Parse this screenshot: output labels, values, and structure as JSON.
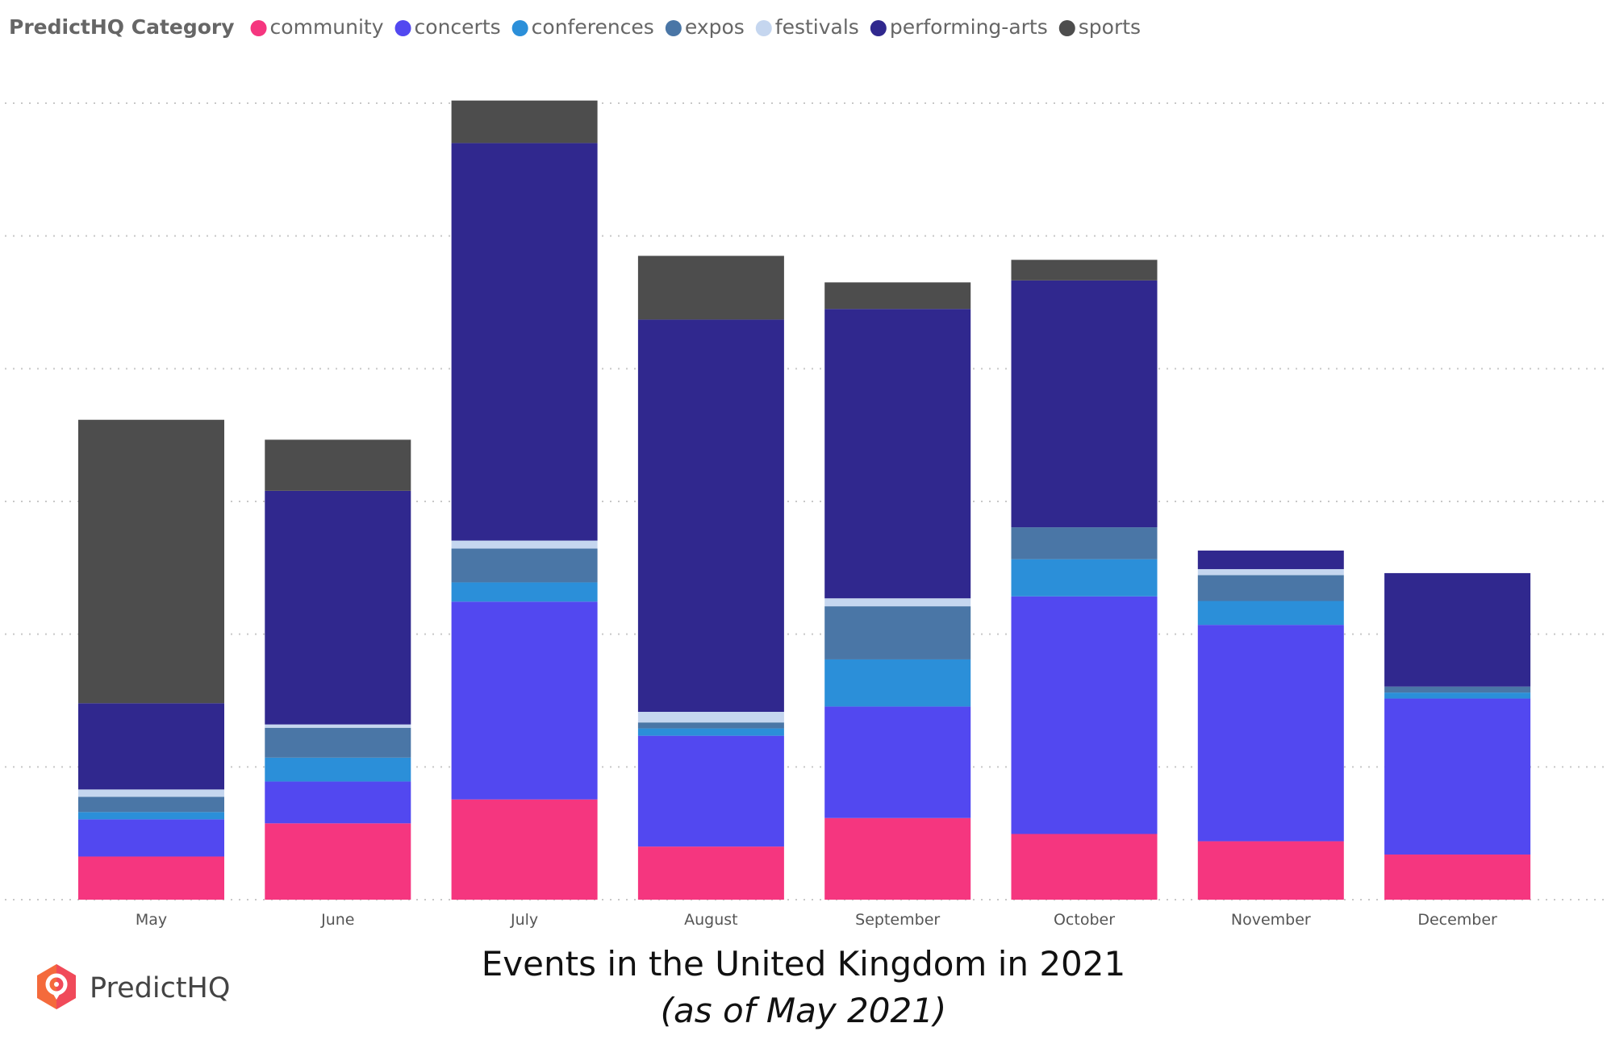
{
  "legend": {
    "title": "PredictHQ Category",
    "items": [
      {
        "name": "community",
        "color": "#f5367f"
      },
      {
        "name": "concerts",
        "color": "#5248f0"
      },
      {
        "name": "conferences",
        "color": "#2b8fd9"
      },
      {
        "name": "expos",
        "color": "#4a76a6"
      },
      {
        "name": "festivals",
        "color": "#c5d6ef"
      },
      {
        "name": "performing-arts",
        "color": "#30288e"
      },
      {
        "name": "sports",
        "color": "#4d4d4d"
      }
    ]
  },
  "chart_data": {
    "type": "bar",
    "stacked": true,
    "title": "Events in the United Kingdom in 2021",
    "subtitle": "(as of May 2021)",
    "xlabel": "",
    "ylabel": "",
    "ylim": [
      0,
      120
    ],
    "grid": true,
    "legend_position": "top-left",
    "categories": [
      "May",
      "June",
      "July",
      "August",
      "September",
      "October",
      "November",
      "December"
    ],
    "series": [
      {
        "name": "community",
        "color": "#f5367f",
        "values": [
          6.5,
          11.5,
          15.1,
          8.0,
          12.3,
          9.9,
          8.8,
          6.8
        ]
      },
      {
        "name": "concerts",
        "color": "#5248f0",
        "values": [
          5.6,
          6.3,
          29.8,
          16.7,
          16.8,
          35.8,
          32.6,
          23.5
        ]
      },
      {
        "name": "conferences",
        "color": "#2b8fd9",
        "values": [
          1.1,
          3.6,
          2.9,
          1.1,
          7.1,
          5.6,
          3.6,
          0.9
        ]
      },
      {
        "name": "expos",
        "color": "#4a76a6",
        "values": [
          2.3,
          4.5,
          5.1,
          0.9,
          8.0,
          4.8,
          3.9,
          0.9
        ]
      },
      {
        "name": "festivals",
        "color": "#c5d6ef",
        "values": [
          1.1,
          0.5,
          1.2,
          1.6,
          1.2,
          0.0,
          0.9,
          0.0
        ]
      },
      {
        "name": "performing-arts",
        "color": "#30288e",
        "values": [
          13.0,
          35.2,
          59.9,
          59.1,
          43.6,
          37.2,
          2.8,
          17.1
        ]
      },
      {
        "name": "sports",
        "color": "#4d4d4d",
        "values": [
          42.7,
          7.7,
          6.4,
          9.6,
          4.0,
          3.1,
          0.0,
          0.0
        ]
      }
    ]
  },
  "brand": {
    "name": "PredictHQ"
  }
}
